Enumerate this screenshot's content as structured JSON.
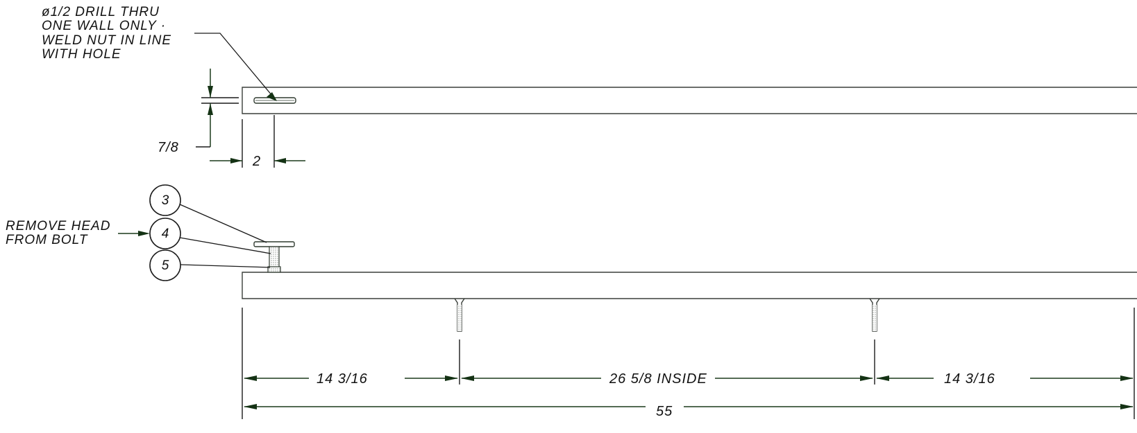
{
  "notes": {
    "drill_note": [
      "ø1/2 DRILL THRU",
      "ONE WALL ONLY ·",
      "WELD NUT IN LINE",
      "WITH HOLE"
    ],
    "remove_head_note": [
      "REMOVE HEAD",
      "FROM BOLT"
    ]
  },
  "dimensions": {
    "hole_offset_vertical": "7/8",
    "hole_offset_horizontal": "2",
    "segment_left": "14 3/16",
    "segment_inside": "26 5/8 INSIDE",
    "segment_right": "14 3/16",
    "overall_length": "55"
  },
  "balloons": [
    "3",
    "4",
    "5"
  ]
}
